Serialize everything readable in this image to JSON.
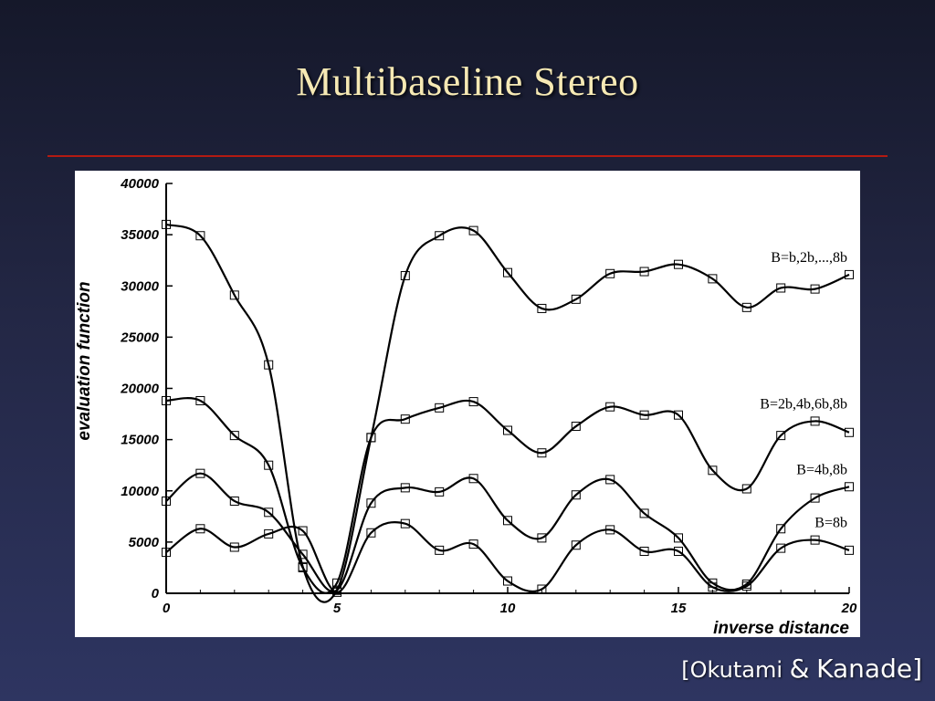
{
  "slide": {
    "title": "Multibaseline Stereo",
    "citation_open": "[Okutami",
    "citation_amp": "&",
    "citation_close": "Kanade]",
    "title_color": "#f6e9b4",
    "rule_color": "#b31a12"
  },
  "chart_data": {
    "type": "line",
    "xlabel": "inverse distance",
    "ylabel": "evaluation function",
    "xlim": [
      0,
      20
    ],
    "ylim": [
      0,
      40000
    ],
    "xticks": [
      0,
      5,
      10,
      15,
      20
    ],
    "yticks": [
      0,
      5000,
      10000,
      15000,
      20000,
      25000,
      30000,
      35000,
      40000
    ],
    "grid": false,
    "legend": "inline labels at right",
    "x": [
      0,
      1,
      2,
      3,
      4,
      5,
      6,
      7,
      8,
      9,
      10,
      11,
      12,
      13,
      14,
      15,
      16,
      17,
      18,
      19,
      20
    ],
    "series": [
      {
        "name": "B=b,2b,...,8b",
        "values": [
          36000,
          34900,
          29100,
          22300,
          2600,
          300,
          15200,
          31000,
          34900,
          35400,
          31300,
          27800,
          28700,
          31200,
          31400,
          32100,
          30700,
          27900,
          29800,
          29700,
          31100
        ]
      },
      {
        "name": "B=2b,4b,6b,8b",
        "values": [
          18800,
          18800,
          15400,
          12500,
          2500,
          1000,
          15200,
          17000,
          18100,
          18700,
          15900,
          13700,
          16300,
          18200,
          17400,
          17400,
          12000,
          10200,
          15400,
          16800,
          15700
        ]
      },
      {
        "name": "B=4b,8b",
        "values": [
          9000,
          11700,
          9000,
          7900,
          3800,
          300,
          8800,
          10300,
          9900,
          11200,
          7100,
          5400,
          9600,
          11100,
          7800,
          5400,
          1000,
          900,
          6300,
          9300,
          10400
        ]
      },
      {
        "name": "B=8b",
        "values": [
          4000,
          6300,
          4500,
          5800,
          6100,
          100,
          5900,
          6800,
          4200,
          4800,
          1200,
          400,
          4700,
          6200,
          4100,
          4100,
          600,
          700,
          4400,
          5200,
          4200
        ]
      }
    ]
  }
}
